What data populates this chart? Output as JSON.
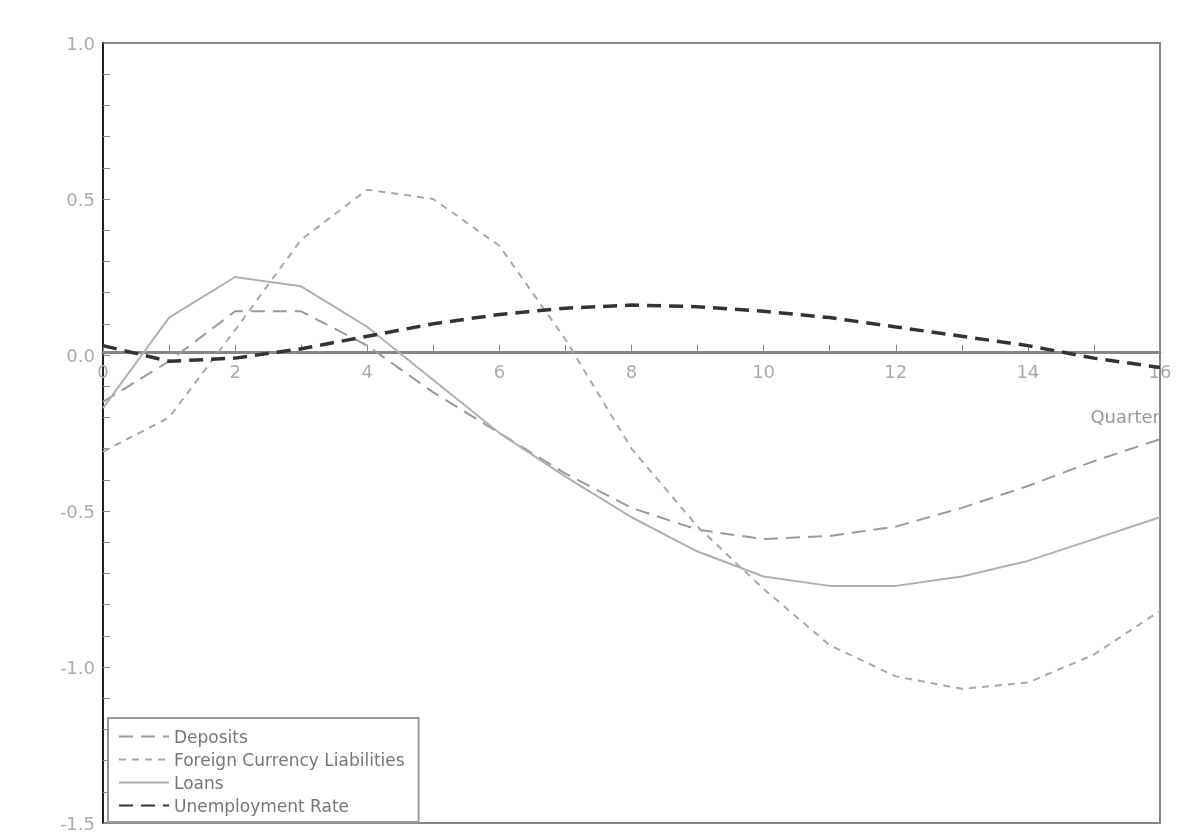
{
  "chart_data": {
    "type": "line",
    "xlabel": "Quarter",
    "x": [
      0,
      1,
      2,
      3,
      4,
      5,
      6,
      7,
      8,
      9,
      10,
      11,
      12,
      13,
      14,
      15,
      16
    ],
    "series": [
      {
        "name": "Deposits",
        "color": "#9a9a9a",
        "line_style": "dashed",
        "values": [
          -0.15,
          -0.02,
          0.14,
          0.14,
          0.03,
          -0.12,
          -0.25,
          -0.38,
          -0.49,
          -0.56,
          -0.59,
          -0.58,
          -0.55,
          -0.49,
          -0.42,
          -0.34,
          -0.27
        ]
      },
      {
        "name": "Foreign Currency Liabilities",
        "color": "#a8a8a8",
        "line_style": "dotted",
        "values": [
          -0.31,
          -0.2,
          0.08,
          0.37,
          0.53,
          0.5,
          0.35,
          0.05,
          -0.3,
          -0.55,
          -0.75,
          -0.93,
          -1.03,
          -1.07,
          -1.05,
          -0.96,
          -0.82
        ]
      },
      {
        "name": "Loans",
        "color": "#b0b0b0",
        "line_style": "solid",
        "values": [
          -0.17,
          0.12,
          0.25,
          0.22,
          0.09,
          -0.08,
          -0.25,
          -0.39,
          -0.52,
          -0.63,
          -0.71,
          -0.74,
          -0.74,
          -0.71,
          -0.66,
          -0.59,
          -0.52
        ]
      },
      {
        "name": "Unemployment Rate",
        "color": "#333333",
        "line_style": "dashed",
        "values": [
          0.03,
          -0.02,
          -0.01,
          0.02,
          0.06,
          0.1,
          0.13,
          0.15,
          0.16,
          0.155,
          0.14,
          0.12,
          0.09,
          0.06,
          0.03,
          -0.01,
          -0.04
        ]
      }
    ],
    "xlim": [
      0,
      16
    ],
    "xticks": [
      0,
      2,
      4,
      6,
      8,
      10,
      12,
      14,
      16
    ],
    "ylim": [
      -1.5,
      1.0
    ],
    "yticks": [
      {
        "value": -1.5,
        "label": "-1.5"
      },
      {
        "value": -1,
        "label": "-1.0"
      },
      {
        "value": -0.5,
        "label": "-0.5"
      },
      {
        "value": 0,
        "label": "0.0"
      },
      {
        "value": 0.5,
        "label": "0.5"
      },
      {
        "value": 1,
        "label": "1.0"
      }
    ],
    "grid": false,
    "legend": "bottom left",
    "marker": "none"
  }
}
